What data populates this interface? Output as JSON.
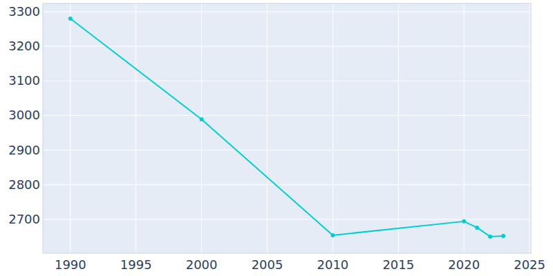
{
  "chart_data": {
    "type": "line",
    "x": [
      1990,
      2000,
      2010,
      2020,
      2021,
      2022,
      2023
    ],
    "values": [
      3280,
      2989,
      2654,
      2694,
      2676,
      2650,
      2652
    ],
    "color": "#00ced1",
    "marker": "circle",
    "xlim": [
      1987.9,
      2025.1
    ],
    "ylim": [
      2602,
      3324
    ],
    "xticks": [
      1990,
      1995,
      2000,
      2005,
      2010,
      2015,
      2020,
      2025
    ],
    "yticks": [
      2700,
      2800,
      2900,
      3000,
      3100,
      3200,
      3300
    ],
    "grid": true
  }
}
